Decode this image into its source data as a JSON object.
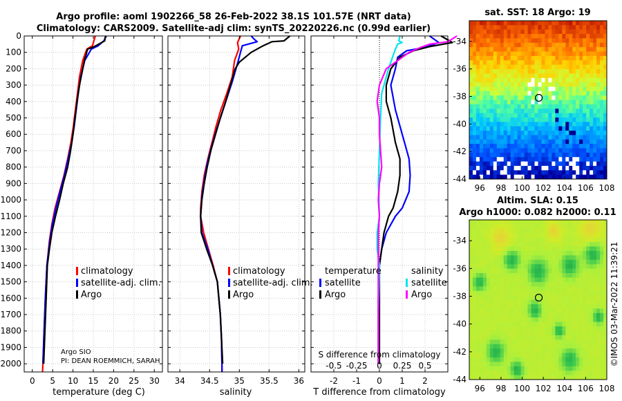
{
  "title": {
    "line1": "Argo profile: aoml 1902266_58 26-Feb-2022 38.1S 101.57E (NRT data)",
    "line2": "Climatology: CARS2009. Satellite-adj clim: synTS_20220226.nc (0.99d earlier)"
  },
  "colors": {
    "climatology": "#ff0000",
    "satellite": "#0000ff",
    "argo": "#000000",
    "sal_sat": "#00e5ee",
    "sal_argo": "#ff00ff"
  },
  "chart_data": [
    {
      "id": "temperature",
      "type": "line",
      "xlabel": "temperature (deg C)",
      "ylabel": "",
      "xlim": [
        -2,
        32
      ],
      "ylim": [
        2050,
        0
      ],
      "xticks": [
        0,
        5,
        10,
        15,
        20,
        25,
        30
      ],
      "yticks": [
        0,
        100,
        200,
        300,
        400,
        500,
        600,
        700,
        800,
        900,
        1000,
        1100,
        1200,
        1300,
        1400,
        1500,
        1600,
        1700,
        1800,
        1900,
        2000
      ],
      "legend": [
        "climatology",
        "satellite-adj. clim.",
        "Argo"
      ],
      "note": "Argo SIO",
      "note2": "PI: DEAN ROEMMICH, SARAH",
      "series": [
        {
          "name": "climatology",
          "color": "#ff0000",
          "points": [
            [
              15.5,
              0
            ],
            [
              14.8,
              60
            ],
            [
              13.4,
              80
            ],
            [
              12.4,
              150
            ],
            [
              11.6,
              250
            ],
            [
              11.1,
              350
            ],
            [
              10.6,
              450
            ],
            [
              10.1,
              550
            ],
            [
              9.5,
              650
            ],
            [
              8.7,
              750
            ],
            [
              7.8,
              850
            ],
            [
              6.7,
              950
            ],
            [
              5.6,
              1050
            ],
            [
              4.8,
              1150
            ],
            [
              4.2,
              1250
            ],
            [
              3.6,
              1400
            ],
            [
              3.2,
              1600
            ],
            [
              2.9,
              1800
            ],
            [
              2.6,
              2000
            ],
            [
              2.5,
              2050
            ]
          ]
        },
        {
          "name": "satellite-adj. clim.",
          "color": "#0000ff",
          "points": [
            [
              18.2,
              0
            ],
            [
              17.6,
              30
            ],
            [
              16.2,
              60
            ],
            [
              14.5,
              80
            ],
            [
              12.9,
              150
            ],
            [
              11.9,
              250
            ],
            [
              11.3,
              350
            ],
            [
              10.8,
              450
            ],
            [
              10.3,
              550
            ],
            [
              9.7,
              650
            ],
            [
              8.8,
              750
            ],
            [
              7.9,
              850
            ],
            [
              6.8,
              950
            ],
            [
              5.8,
              1050
            ],
            [
              4.9,
              1150
            ],
            [
              4.3,
              1250
            ],
            [
              3.6,
              1400
            ],
            [
              3.2,
              1600
            ],
            [
              2.9,
              1800
            ],
            [
              2.6,
              2000
            ]
          ]
        },
        {
          "name": "Argo",
          "color": "#000000",
          "points": [
            [
              18.0,
              0
            ],
            [
              17.8,
              30
            ],
            [
              16.0,
              55
            ],
            [
              14.8,
              70
            ],
            [
              13.6,
              80
            ],
            [
              12.8,
              150
            ],
            [
              12.0,
              250
            ],
            [
              11.6,
              300
            ],
            [
              11.0,
              400
            ],
            [
              10.5,
              500
            ],
            [
              10.0,
              600
            ],
            [
              9.4,
              700
            ],
            [
              8.7,
              800
            ],
            [
              7.6,
              900
            ],
            [
              6.7,
              1000
            ],
            [
              5.7,
              1100
            ],
            [
              4.8,
              1200
            ],
            [
              4.2,
              1300
            ],
            [
              3.7,
              1400
            ],
            [
              3.4,
              1600
            ],
            [
              3.1,
              1800
            ],
            [
              2.8,
              2000
            ]
          ]
        }
      ]
    },
    {
      "id": "salinity",
      "type": "line",
      "xlabel": "salinity",
      "ylabel": "",
      "xlim": [
        33.8,
        36.1
      ],
      "ylim": [
        2050,
        0
      ],
      "xticks": [
        34,
        34.5,
        35,
        35.5,
        36
      ],
      "legend": [
        "climatology",
        "satellite-adj. clim.",
        "Argo"
      ],
      "series": [
        {
          "name": "climatology",
          "color": "#ff0000",
          "points": [
            [
              35.02,
              0
            ],
            [
              34.97,
              40
            ],
            [
              34.99,
              80
            ],
            [
              34.92,
              150
            ],
            [
              34.88,
              250
            ],
            [
              34.79,
              350
            ],
            [
              34.69,
              450
            ],
            [
              34.61,
              550
            ],
            [
              34.54,
              650
            ],
            [
              34.47,
              750
            ],
            [
              34.41,
              850
            ],
            [
              34.37,
              950
            ],
            [
              34.35,
              1050
            ],
            [
              34.35,
              1100
            ],
            [
              34.4,
              1200
            ],
            [
              34.48,
              1300
            ],
            [
              34.56,
              1400
            ],
            [
              34.63,
              1500
            ],
            [
              34.68,
              1700
            ],
            [
              34.7,
              1850
            ],
            [
              34.71,
              2050
            ]
          ]
        },
        {
          "name": "satellite-adj. clim.",
          "color": "#0000ff",
          "points": [
            [
              35.2,
              0
            ],
            [
              35.25,
              20
            ],
            [
              35.3,
              35
            ],
            [
              35.05,
              60
            ],
            [
              35.02,
              100
            ],
            [
              34.96,
              180
            ],
            [
              34.88,
              280
            ],
            [
              34.79,
              380
            ],
            [
              34.7,
              480
            ],
            [
              34.61,
              580
            ],
            [
              34.53,
              680
            ],
            [
              34.46,
              780
            ],
            [
              34.41,
              880
            ],
            [
              34.37,
              980
            ],
            [
              34.35,
              1100
            ],
            [
              34.37,
              1200
            ],
            [
              34.47,
              1300
            ],
            [
              34.55,
              1400
            ],
            [
              34.63,
              1500
            ],
            [
              34.68,
              1700
            ],
            [
              34.7,
              1850
            ],
            [
              34.71,
              2050
            ]
          ]
        },
        {
          "name": "Argo",
          "color": "#000000",
          "points": [
            [
              35.85,
              0
            ],
            [
              35.75,
              30
            ],
            [
              35.55,
              35
            ],
            [
              35.4,
              60
            ],
            [
              35.2,
              100
            ],
            [
              35.0,
              160
            ],
            [
              34.93,
              200
            ],
            [
              34.85,
              300
            ],
            [
              34.77,
              400
            ],
            [
              34.68,
              500
            ],
            [
              34.6,
              600
            ],
            [
              34.52,
              700
            ],
            [
              34.46,
              800
            ],
            [
              34.41,
              900
            ],
            [
              34.37,
              1000
            ],
            [
              34.35,
              1100
            ],
            [
              34.36,
              1200
            ],
            [
              34.45,
              1300
            ],
            [
              34.55,
              1400
            ],
            [
              34.63,
              1500
            ],
            [
              34.68,
              1700
            ],
            [
              34.7,
              1850
            ],
            [
              34.72,
              2000
            ]
          ]
        }
      ]
    },
    {
      "id": "difference",
      "type": "line",
      "xlabel": "T difference from climatology",
      "xlim": [
        -3,
        3
      ],
      "ylim": [
        2050,
        0
      ],
      "xticks": [
        -2,
        -1,
        0,
        1,
        2
      ],
      "xticks_top": [
        -0.5,
        -0.25,
        0,
        0.25,
        0.5
      ],
      "top_axis_label": "S difference from climatology",
      "legend_titles": [
        "temperature",
        "salinity"
      ],
      "legend_left": [
        "satellite",
        "Argo"
      ],
      "legend_right": [
        "satellite",
        "Argo"
      ],
      "series": [
        {
          "name": "T satellite",
          "color": "#0000ff",
          "points": [
            [
              2.2,
              0
            ],
            [
              2.6,
              40
            ],
            [
              2.0,
              70
            ],
            [
              1.2,
              90
            ],
            [
              0.8,
              130
            ],
            [
              0.7,
              200
            ],
            [
              0.5,
              300
            ],
            [
              0.7,
              450
            ],
            [
              0.9,
              550
            ],
            [
              1.1,
              650
            ],
            [
              1.3,
              750
            ],
            [
              1.35,
              850
            ],
            [
              1.3,
              950
            ],
            [
              1.0,
              1050
            ],
            [
              0.7,
              1100
            ],
            [
              0.3,
              1200
            ],
            [
              0.1,
              1300
            ],
            [
              0.0,
              1400
            ],
            [
              -0.05,
              1600
            ],
            [
              -0.05,
              1800
            ],
            [
              -0.05,
              2000
            ]
          ]
        },
        {
          "name": "T Argo",
          "color": "#000000",
          "points": [
            [
              2.7,
              0
            ],
            [
              3.2,
              40
            ],
            [
              2.2,
              65
            ],
            [
              1.5,
              90
            ],
            [
              0.9,
              130
            ],
            [
              0.5,
              200
            ],
            [
              0.3,
              300
            ],
            [
              0.3,
              400
            ],
            [
              0.5,
              500
            ],
            [
              0.7,
              650
            ],
            [
              0.9,
              750
            ],
            [
              0.9,
              850
            ],
            [
              0.8,
              950
            ],
            [
              0.6,
              1050
            ],
            [
              0.4,
              1100
            ],
            [
              0.2,
              1200
            ],
            [
              0.1,
              1300
            ],
            [
              0.0,
              1400
            ],
            [
              0.0,
              1700
            ],
            [
              0.0,
              2000
            ]
          ]
        },
        {
          "name": "S satellite",
          "color": "#00e5ee",
          "points": [
            [
              0.9,
              0
            ],
            [
              0.85,
              30
            ],
            [
              1.0,
              40
            ],
            [
              0.8,
              50
            ],
            [
              0.7,
              80
            ],
            [
              0.4,
              200
            ],
            [
              0.1,
              350
            ],
            [
              0.05,
              500
            ],
            [
              0.0,
              700
            ],
            [
              -0.05,
              900
            ],
            [
              0.0,
              1100
            ],
            [
              -0.1,
              1200
            ],
            [
              -0.1,
              1300
            ],
            [
              0.0,
              1400
            ],
            [
              -0.05,
              1700
            ],
            [
              -0.05,
              2000
            ]
          ]
        },
        {
          "name": "S Argo",
          "color": "#ff00ff",
          "points": [
            [
              3.4,
              0
            ],
            [
              3.0,
              35
            ],
            [
              2.2,
              50
            ],
            [
              1.8,
              70
            ],
            [
              1.3,
              100
            ],
            [
              0.8,
              150
            ],
            [
              0.3,
              200
            ],
            [
              0.0,
              300
            ],
            [
              -0.1,
              400
            ],
            [
              0.0,
              500
            ],
            [
              0.0,
              600
            ],
            [
              0.05,
              700
            ],
            [
              0.1,
              800
            ],
            [
              0.0,
              900
            ],
            [
              -0.05,
              1000
            ],
            [
              0.0,
              1100
            ],
            [
              -0.05,
              1200
            ],
            [
              -0.05,
              1400
            ],
            [
              -0.05,
              1700
            ],
            [
              -0.05,
              2000
            ]
          ]
        }
      ]
    },
    {
      "id": "sst_map",
      "type": "heatmap",
      "title": "sat. SST: 18 Argo: 19",
      "xlim": [
        95,
        108
      ],
      "ylim": [
        -44,
        -32.5
      ],
      "xticks": [
        96,
        98,
        100,
        102,
        104,
        106,
        108
      ],
      "yticks": [
        -34,
        -36,
        -38,
        -40,
        -42,
        -44
      ],
      "marker": {
        "lon": 101.57,
        "lat": -38.1
      }
    },
    {
      "id": "sla_map",
      "type": "heatmap",
      "title1": "Altim. SLA: 0.15",
      "title2": "Argo h1000: 0.082 h2000: 0.11",
      "xlim": [
        95,
        108
      ],
      "ylim": [
        -44,
        -32.5
      ],
      "xticks": [
        96,
        98,
        100,
        102,
        104,
        106,
        108
      ],
      "yticks": [
        -34,
        -36,
        -38,
        -40,
        -42,
        -44
      ],
      "marker": {
        "lon": 101.57,
        "lat": -38.1
      }
    }
  ],
  "copyright": "©IMOS 03-Mar-2022 11:39:21"
}
